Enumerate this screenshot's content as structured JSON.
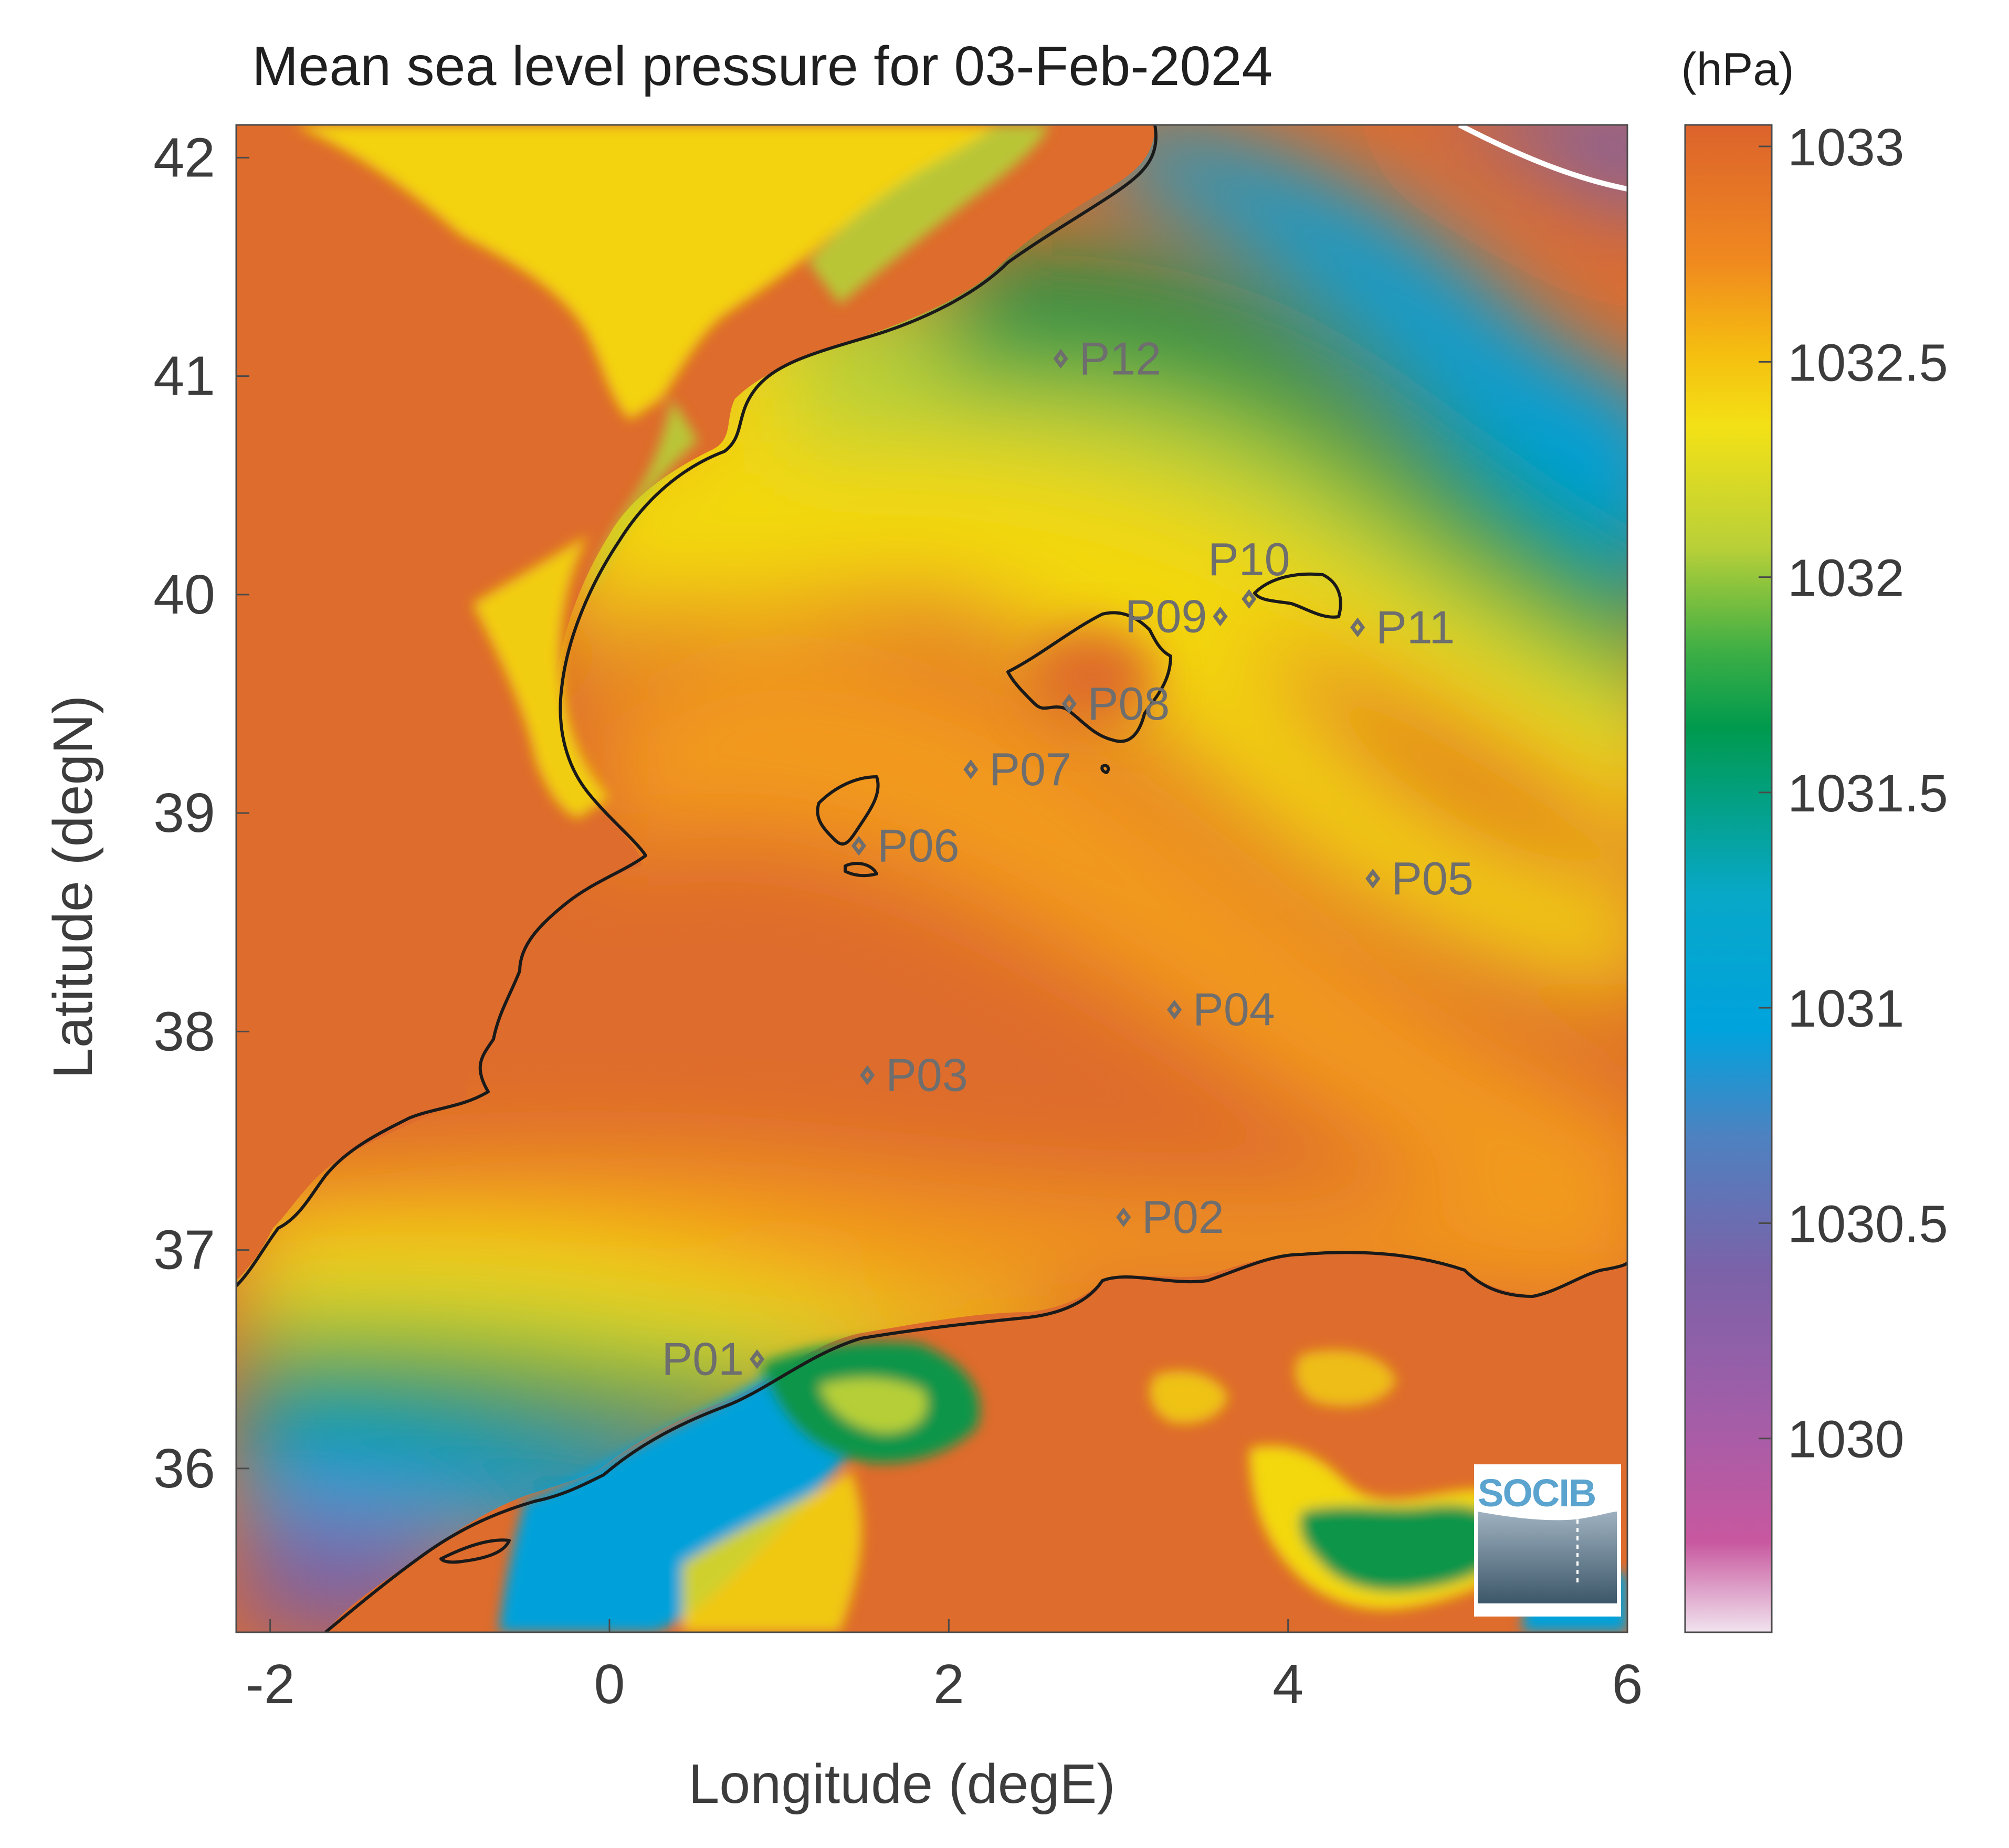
{
  "title": "Mean sea level pressure for 03-Feb-2024",
  "colorbar": {
    "unit": "(hPa)",
    "ticks": [
      "1033",
      "1032.5",
      "1032",
      "1031.5",
      "1031",
      "1030.5",
      "1030"
    ],
    "range": [
      1029.55,
      1033.05
    ]
  },
  "axes": {
    "xlabel": "Longitude (degE)",
    "ylabel": "Latitude (degN)",
    "xticks": [
      "-2",
      "0",
      "2",
      "4",
      "6"
    ],
    "yticks": [
      "42",
      "41",
      "40",
      "39",
      "38",
      "37",
      "36"
    ],
    "xlim": [
      -2.2,
      6.0
    ],
    "ylim": [
      35.25,
      42.15
    ]
  },
  "points": [
    {
      "label": "P01",
      "lon": 0.87,
      "lat": 36.5
    },
    {
      "label": "P02",
      "lon": 3.03,
      "lat": 37.15
    },
    {
      "label": "P03",
      "lon": 1.52,
      "lat": 37.8
    },
    {
      "label": "P04",
      "lon": 3.33,
      "lat": 38.1
    },
    {
      "label": "P05",
      "lon": 4.5,
      "lat": 38.7
    },
    {
      "label": "P06",
      "lon": 1.47,
      "lat": 38.85
    },
    {
      "label": "P07",
      "lon": 2.13,
      "lat": 39.2
    },
    {
      "label": "P08",
      "lon": 2.71,
      "lat": 39.5
    },
    {
      "label": "P09",
      "lon": 3.6,
      "lat": 39.9
    },
    {
      "label": "P10",
      "lon": 3.77,
      "lat": 39.98
    },
    {
      "label": "P11",
      "lon": 4.41,
      "lat": 39.85
    },
    {
      "label": "P12",
      "lon": 2.66,
      "lat": 41.08
    }
  ],
  "logo": {
    "text": "SOCIB"
  },
  "colors": {
    "land": "#d9652f",
    "high": "#de6c2c",
    "orange": "#f29a1e",
    "yellow": "#f3d811",
    "yellowgreen": "#b6cf38",
    "green": "#0b9548",
    "cyan": "#03a1da",
    "blue": "#4a7fc0",
    "purple": "#7b60a7",
    "magenta": "#c7539d",
    "pink": "#ecc0dd",
    "coast": "#1a1a1a",
    "marker": "#6e6e6e",
    "text": "#3c3c3c"
  }
}
